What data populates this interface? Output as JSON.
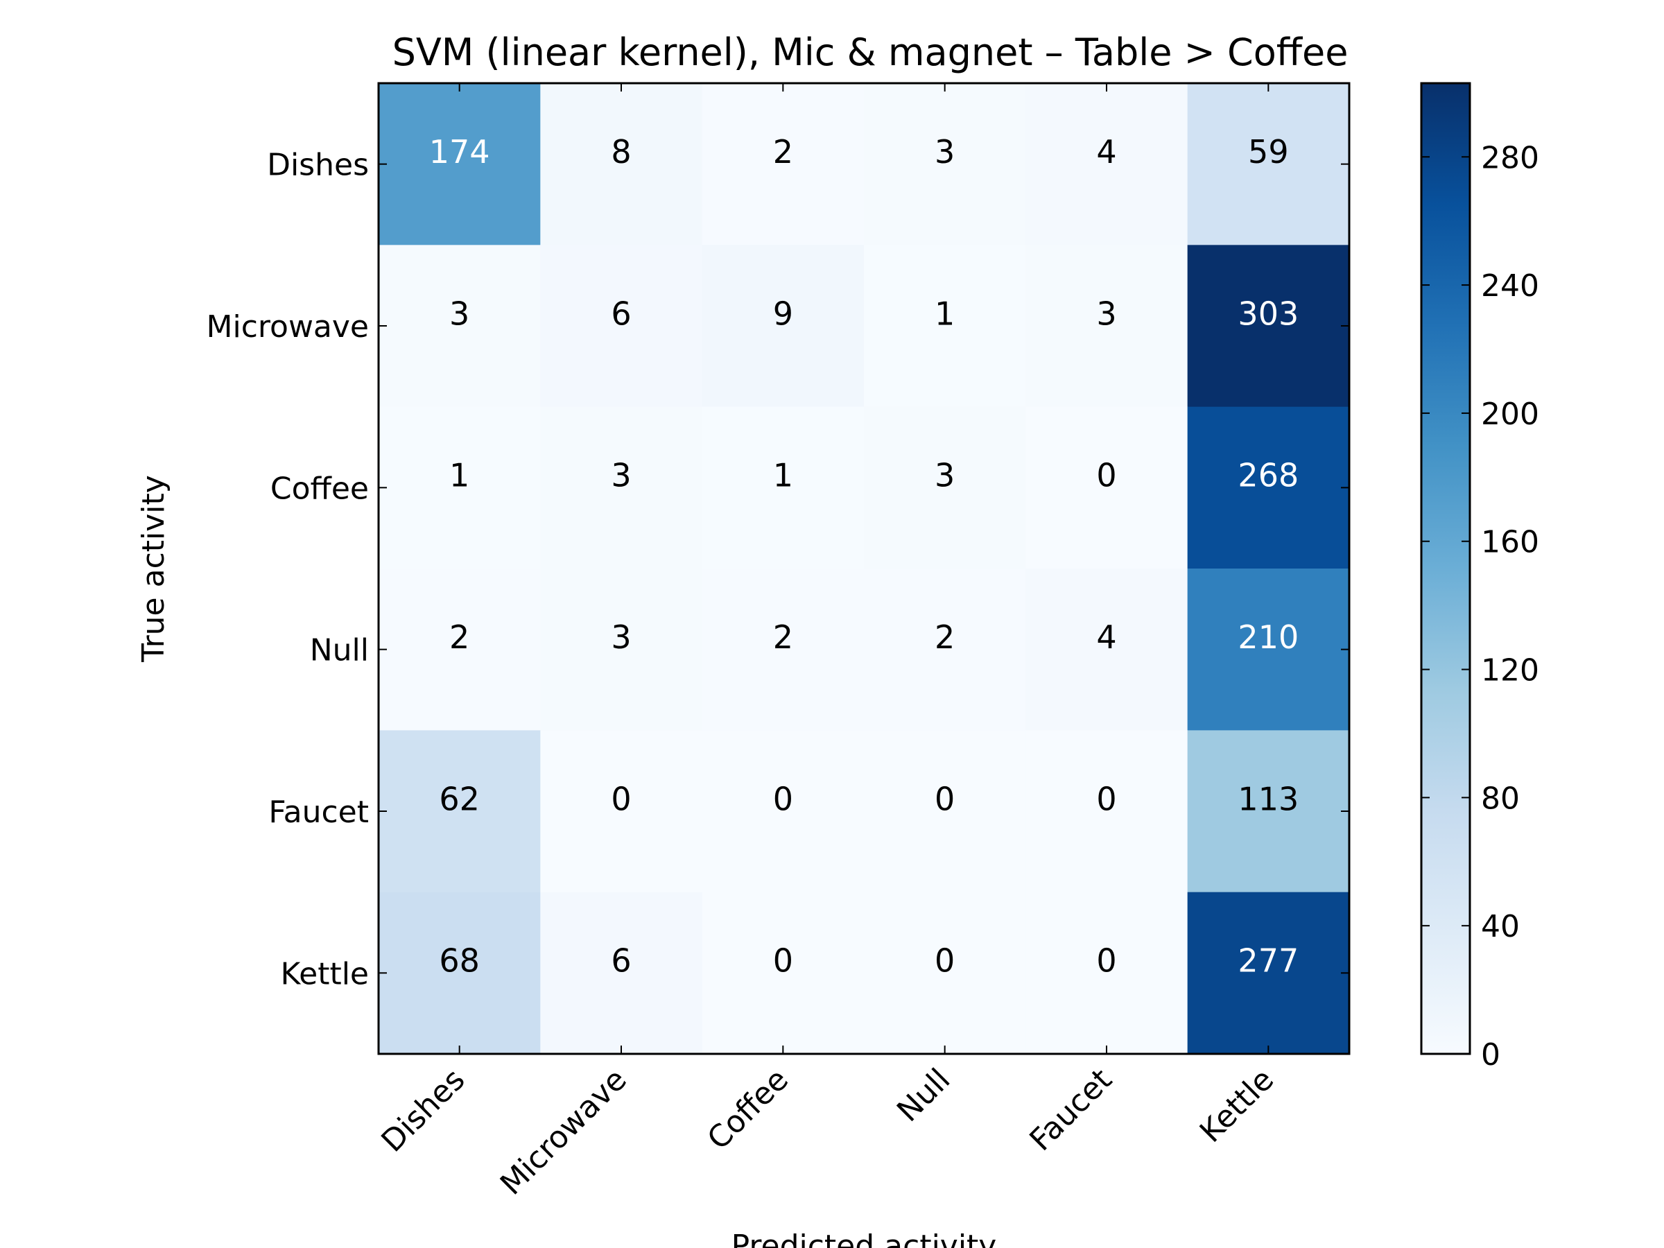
{
  "chart_data": {
    "type": "heatmap",
    "title": "SVM (linear kernel), Mic & magnet – Table > Coffee",
    "xlabel": "Predicted activity",
    "ylabel": "True activity",
    "x_categories": [
      "Dishes",
      "Microwave",
      "Coffee",
      "Null",
      "Faucet",
      "Kettle"
    ],
    "y_categories": [
      "Dishes",
      "Microwave",
      "Coffee",
      "Null",
      "Faucet",
      "Kettle"
    ],
    "values": [
      [
        174,
        8,
        2,
        3,
        4,
        59
      ],
      [
        3,
        6,
        9,
        1,
        3,
        303
      ],
      [
        1,
        3,
        1,
        3,
        0,
        268
      ],
      [
        2,
        3,
        2,
        2,
        4,
        210
      ],
      [
        62,
        0,
        0,
        0,
        0,
        113
      ],
      [
        68,
        6,
        0,
        0,
        0,
        277
      ]
    ],
    "colorbar": {
      "range": [
        0,
        303
      ],
      "ticks": [
        0,
        40,
        80,
        120,
        160,
        200,
        240,
        280
      ],
      "colormap": "Blues"
    },
    "cell_text_colors": {
      "light": "#ffffff",
      "dark": "#000000"
    },
    "grid": false
  }
}
